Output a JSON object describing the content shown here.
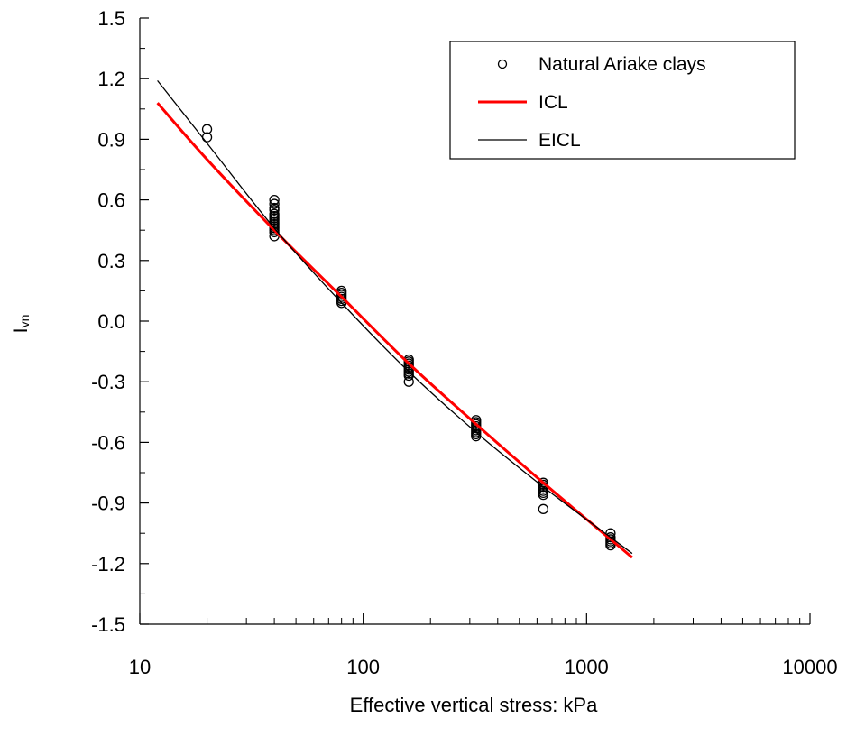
{
  "chart_data": {
    "type": "scatter",
    "title": "",
    "xlabel": "Effective vertical stress: kPa",
    "ylabel": "Ivn",
    "ylabel_main": "I",
    "ylabel_sub": "vn",
    "x_scale": "log",
    "xlim": [
      10,
      10000
    ],
    "ylim": [
      -1.5,
      1.5
    ],
    "x_ticks": [
      {
        "value": 10,
        "label": "10"
      },
      {
        "value": 100,
        "label": "100"
      },
      {
        "value": 1000,
        "label": "1000"
      },
      {
        "value": 10000,
        "label": "10000"
      }
    ],
    "y_ticks": [
      {
        "value": 1.5,
        "label": "1.5"
      },
      {
        "value": 1.2,
        "label": "1.2"
      },
      {
        "value": 0.9,
        "label": "0.9"
      },
      {
        "value": 0.6,
        "label": "0.6"
      },
      {
        "value": 0.3,
        "label": "0.3"
      },
      {
        "value": 0.0,
        "label": "0.0"
      },
      {
        "value": -0.3,
        "label": "-0.3"
      },
      {
        "value": -0.6,
        "label": "-0.6"
      },
      {
        "value": -0.9,
        "label": "-0.9"
      },
      {
        "value": -1.2,
        "label": "-1.2"
      },
      {
        "value": -1.5,
        "label": "-1.5"
      }
    ],
    "y_minor_step": 0.15,
    "grid": false,
    "legend_position": "top-right",
    "series": [
      {
        "name": "Natural Ariake clays",
        "kind": "markers",
        "marker": "open-circle",
        "color": "#000000",
        "points": [
          [
            20,
            0.95
          ],
          [
            20,
            0.91
          ],
          [
            40,
            0.6
          ],
          [
            40,
            0.58
          ],
          [
            40,
            0.56
          ],
          [
            40,
            0.55
          ],
          [
            40,
            0.53
          ],
          [
            40,
            0.52
          ],
          [
            40,
            0.51
          ],
          [
            40,
            0.5
          ],
          [
            40,
            0.49
          ],
          [
            40,
            0.48
          ],
          [
            40,
            0.47
          ],
          [
            40,
            0.46
          ],
          [
            40,
            0.45
          ],
          [
            40,
            0.44
          ],
          [
            40,
            0.42
          ],
          [
            80,
            0.15
          ],
          [
            80,
            0.14
          ],
          [
            80,
            0.13
          ],
          [
            80,
            0.12
          ],
          [
            80,
            0.11
          ],
          [
            80,
            0.1
          ],
          [
            80,
            0.09
          ],
          [
            160,
            -0.19
          ],
          [
            160,
            -0.2
          ],
          [
            160,
            -0.21
          ],
          [
            160,
            -0.22
          ],
          [
            160,
            -0.23
          ],
          [
            160,
            -0.24
          ],
          [
            160,
            -0.25
          ],
          [
            160,
            -0.26
          ],
          [
            160,
            -0.27
          ],
          [
            160,
            -0.3
          ],
          [
            320,
            -0.49
          ],
          [
            320,
            -0.5
          ],
          [
            320,
            -0.51
          ],
          [
            320,
            -0.52
          ],
          [
            320,
            -0.53
          ],
          [
            320,
            -0.54
          ],
          [
            320,
            -0.55
          ],
          [
            320,
            -0.56
          ],
          [
            320,
            -0.57
          ],
          [
            640,
            -0.8
          ],
          [
            640,
            -0.81
          ],
          [
            640,
            -0.82
          ],
          [
            640,
            -0.83
          ],
          [
            640,
            -0.84
          ],
          [
            640,
            -0.85
          ],
          [
            640,
            -0.86
          ],
          [
            640,
            -0.93
          ],
          [
            1280,
            -1.05
          ],
          [
            1280,
            -1.07
          ],
          [
            1280,
            -1.08
          ],
          [
            1280,
            -1.09
          ],
          [
            1280,
            -1.1
          ],
          [
            1280,
            -1.11
          ]
        ]
      },
      {
        "name": "ICL",
        "kind": "line",
        "color": "#ff0000",
        "width": 3,
        "points": [
          [
            12,
            1.08
          ],
          [
            20,
            0.8
          ],
          [
            40,
            0.45
          ],
          [
            80,
            0.12
          ],
          [
            160,
            -0.21
          ],
          [
            320,
            -0.51
          ],
          [
            640,
            -0.8
          ],
          [
            1280,
            -1.08
          ],
          [
            1600,
            -1.17
          ]
        ]
      },
      {
        "name": "EICL",
        "kind": "line",
        "color": "#000000",
        "width": 1.3,
        "points": [
          [
            12,
            1.19
          ],
          [
            20,
            0.88
          ],
          [
            40,
            0.46
          ],
          [
            80,
            0.09
          ],
          [
            160,
            -0.25
          ],
          [
            320,
            -0.55
          ],
          [
            640,
            -0.82
          ],
          [
            1280,
            -1.07
          ],
          [
            1600,
            -1.15
          ]
        ]
      }
    ]
  }
}
